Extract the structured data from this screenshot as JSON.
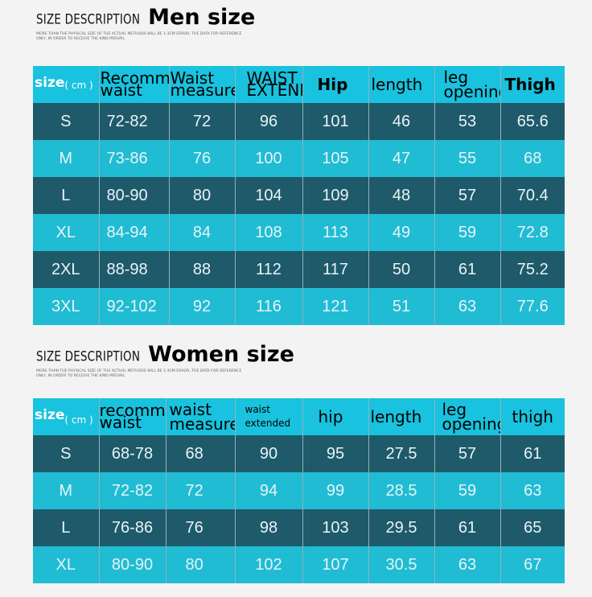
{
  "men": {
    "heading_small": "SIZE DESCRIPTION",
    "heading_big": "Men size",
    "note": "MORE THAN THE PHYSICAL SIZE OF THE ACTUAL METHODS WILL BE 1-3CM ERROR, THE DATA FOR REFERENCE ONLY, IN ORDER TO RECEIVE THE KIND PREVAIL",
    "headers": {
      "size": "size",
      "unit": "( cm )",
      "c1": "Recommended waist",
      "c2": "Waist measurement",
      "c3": "WAIST EXTENDED",
      "c4": "Hip",
      "c5": "length",
      "c6": "leg opening",
      "c7": "Thigh"
    },
    "rows": [
      [
        "S",
        "72-82",
        "72",
        "96",
        "101",
        "46",
        "53",
        "65.6"
      ],
      [
        "M",
        "73-86",
        "76",
        "100",
        "105",
        "47",
        "55",
        "68"
      ],
      [
        "L",
        "80-90",
        "80",
        "104",
        "109",
        "48",
        "57",
        "70.4"
      ],
      [
        "XL",
        "84-94",
        "84",
        "108",
        "113",
        "49",
        "59",
        "72.8"
      ],
      [
        "2XL",
        "88-98",
        "88",
        "112",
        "117",
        "50",
        "61",
        "75.2"
      ],
      [
        "3XL",
        "92-102",
        "92",
        "116",
        "121",
        "51",
        "63",
        "77.6"
      ]
    ]
  },
  "women": {
    "heading_small": "SIZE DESCRIPTION",
    "heading_big": "Women size",
    "note": "MORE THAN THE PHYSICAL SIZE OF THE ACTUAL METHODS WILL BE 1-3CM ERROR, THE DATA FOR REFERENCE ONLY, IN ORDER TO RECEIVE THE KIND PREVAIL",
    "headers": {
      "size": "size",
      "unit": "( cm )",
      "c1": "recommended waist",
      "c2": "waist measurement",
      "c3": "waist extended",
      "c4": "hip",
      "c5": "length",
      "c6": "leg opening",
      "c7": "thigh"
    },
    "rows": [
      [
        "S",
        "68-78",
        "68",
        "90",
        "95",
        "27.5",
        "57",
        "61"
      ],
      [
        "M",
        "72-82",
        "72",
        "94",
        "99",
        "28.5",
        "59",
        "63"
      ],
      [
        "L",
        "76-86",
        "76",
        "98",
        "103",
        "29.5",
        "61",
        "65"
      ],
      [
        "XL",
        "80-90",
        "80",
        "102",
        "107",
        "30.5",
        "63",
        "67"
      ]
    ]
  },
  "colors": {
    "header_bg": "#19c2de",
    "row_dark": "#1f5a6a",
    "row_light": "#20bcd4",
    "page_bg": "#f3f3f3"
  }
}
